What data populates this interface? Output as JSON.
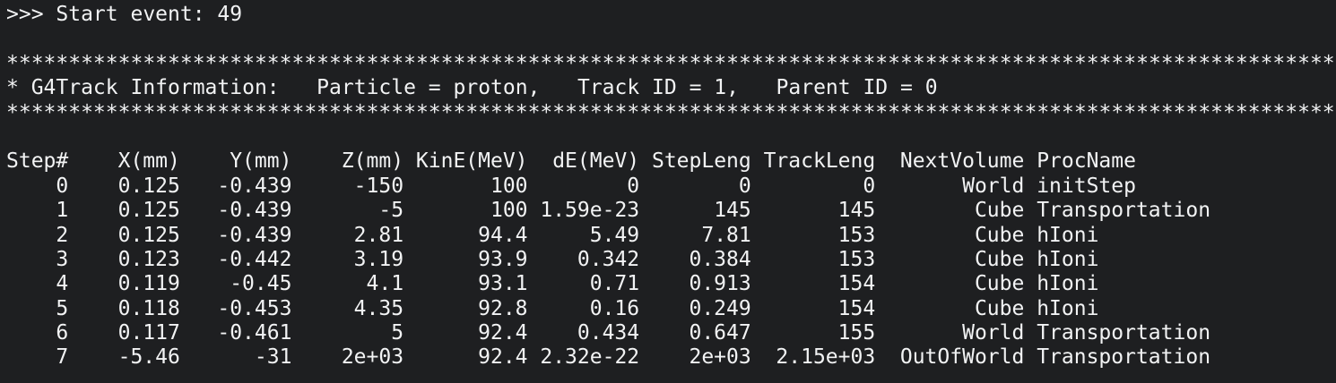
{
  "colors": {
    "background": "#1e1f21",
    "foreground": "#f2f3f4"
  },
  "terminal": {
    "prompt_line": ">>> Start event: 49",
    "banner_line": "***********************************************************************************************************",
    "track_info": {
      "line": "* G4Track Information:   Particle = proton,   Track ID = 1,   Parent ID = 0",
      "particle": "proton",
      "track_id": "1",
      "parent_id": "0"
    }
  },
  "step_table": {
    "headers": [
      "Step#",
      "X(mm)",
      "Y(mm)",
      "Z(mm)",
      "KinE(MeV)",
      "dE(MeV)",
      "StepLeng",
      "TrackLeng",
      "NextVolume",
      "ProcName"
    ],
    "rows": [
      [
        "0",
        "0.125",
        "-0.439",
        "-150",
        "100",
        "0",
        "0",
        "0",
        "World",
        "initStep"
      ],
      [
        "1",
        "0.125",
        "-0.439",
        "-5",
        "100",
        "1.59e-23",
        "145",
        "145",
        "Cube",
        "Transportation"
      ],
      [
        "2",
        "0.125",
        "-0.439",
        "2.81",
        "94.4",
        "5.49",
        "7.81",
        "153",
        "Cube",
        "hIoni"
      ],
      [
        "3",
        "0.123",
        "-0.442",
        "3.19",
        "93.9",
        "0.342",
        "0.384",
        "153",
        "Cube",
        "hIoni"
      ],
      [
        "4",
        "0.119",
        "-0.45",
        "4.1",
        "93.1",
        "0.71",
        "0.913",
        "154",
        "Cube",
        "hIoni"
      ],
      [
        "5",
        "0.118",
        "-0.453",
        "4.35",
        "92.8",
        "0.16",
        "0.249",
        "154",
        "Cube",
        "hIoni"
      ],
      [
        "6",
        "0.117",
        "-0.461",
        "5",
        "92.4",
        "0.434",
        "0.647",
        "155",
        "World",
        "Transportation"
      ],
      [
        "7",
        "-5.46",
        "-31",
        "2e+03",
        "92.4",
        "2.32e-22",
        "2e+03",
        "2.15e+03",
        "OutOfWorld",
        "Transportation"
      ]
    ]
  }
}
